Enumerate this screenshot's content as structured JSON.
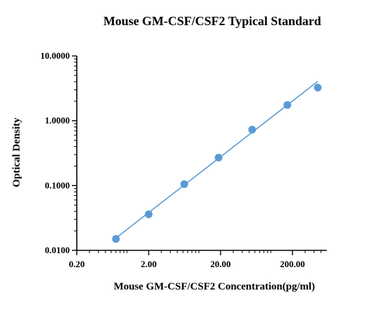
{
  "chart_data": {
    "type": "scatter",
    "title": "Mouse GM-CSF/CSF2 Typical Standard",
    "xlabel": "Mouse GM-CSF/CSF2 Concentration(pg/ml)",
    "ylabel": "Optical Density",
    "x_scale": "log",
    "y_scale": "log",
    "xlim": [
      0.2,
      600
    ],
    "ylim": [
      0.01,
      10
    ],
    "x_ticks": [
      "0.20",
      "2.00",
      "20.00",
      "200.00"
    ],
    "y_ticks": [
      "0.0100",
      "0.1000",
      "1.0000",
      "10.0000"
    ],
    "grid": false,
    "series": [
      {
        "points": [
          {
            "x": 0.7,
            "y": 0.015
          },
          {
            "x": 2.0,
            "y": 0.036
          },
          {
            "x": 6.25,
            "y": 0.105
          },
          {
            "x": 18.75,
            "y": 0.27
          },
          {
            "x": 55,
            "y": 0.73
          },
          {
            "x": 170,
            "y": 1.75
          },
          {
            "x": 450,
            "y": 3.25
          }
        ]
      }
    ],
    "fit_line": {
      "from": {
        "x": 0.7,
        "y": 0.0155
      },
      "to": {
        "x": 450,
        "y": 4.05
      }
    },
    "colors": {
      "points": "#5b9bd5",
      "line": "#5b9bd5",
      "axis": "#000000"
    }
  }
}
